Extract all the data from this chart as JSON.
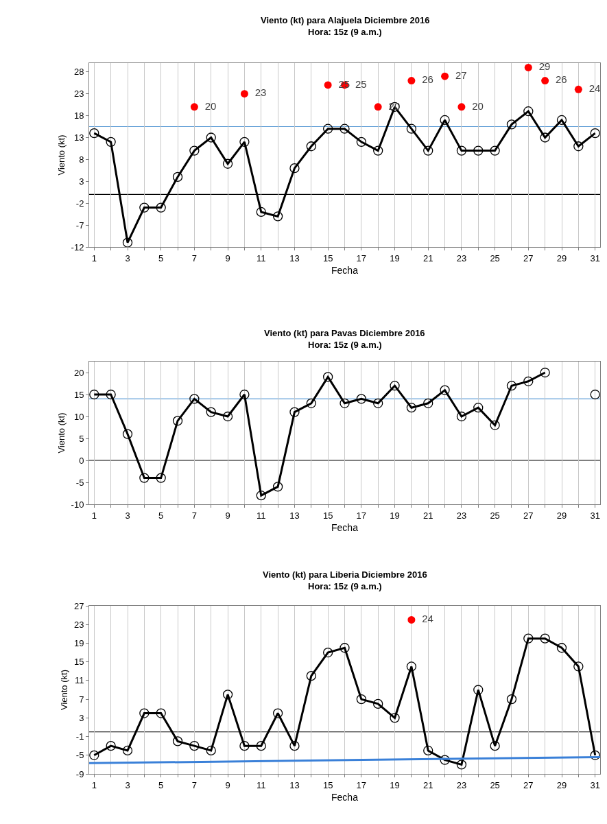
{
  "chart_data": [
    {
      "type": "line",
      "title": "Viento (kt) para Alajuela Diciembre 2016",
      "subtitle": "Hora: 15z (9 a.m.)",
      "xlabel": "Fecha",
      "ylabel": "Viento (kt)",
      "x": [
        1,
        2,
        3,
        4,
        5,
        6,
        7,
        8,
        9,
        10,
        11,
        12,
        13,
        14,
        15,
        16,
        17,
        18,
        19,
        20,
        21,
        22,
        23,
        24,
        25,
        26,
        27,
        28,
        29,
        30,
        31
      ],
      "series": [
        {
          "color": "#000000",
          "marker": "circle",
          "values": [
            14,
            12,
            -11,
            -3,
            -3,
            4,
            10,
            13,
            7,
            12,
            -4,
            -5,
            6,
            11,
            15,
            15,
            12,
            10,
            20,
            15,
            10,
            17,
            10,
            10,
            10,
            16,
            19,
            13,
            17,
            11,
            14
          ]
        },
        {
          "type": "scatter",
          "color": "#ff0000",
          "marker": "circle",
          "x": [
            7,
            10,
            15,
            16,
            18,
            20,
            22,
            23,
            27,
            28,
            30
          ],
          "values": [
            20,
            23,
            25,
            25,
            20,
            26,
            27,
            20,
            29,
            26,
            24
          ],
          "value_labels": [
            "20",
            "23",
            "25",
            "25",
            "20",
            "26",
            "27",
            "20",
            "29",
            "26",
            "24"
          ]
        }
      ],
      "xlim": [
        0.7,
        31.3
      ],
      "ylim": [
        -12,
        30
      ],
      "xticks": [
        1,
        {
          "value": 2,
          "label": null
        },
        3,
        {
          "value": 4,
          "label": null
        },
        5,
        {
          "value": 6,
          "label": null
        },
        7,
        {
          "value": 8,
          "label": null
        },
        9,
        {
          "value": 10,
          "label": null
        },
        11,
        {
          "value": 12,
          "label": null
        },
        13,
        {
          "value": 14,
          "label": null
        },
        15,
        {
          "value": 16,
          "label": null
        },
        17,
        {
          "value": 18,
          "label": null
        },
        19,
        {
          "value": 20,
          "label": null
        },
        21,
        {
          "value": 22,
          "label": null
        },
        23,
        {
          "value": 24,
          "label": null
        },
        25,
        {
          "value": 26,
          "label": null
        },
        27,
        {
          "value": 28,
          "label": null
        },
        29,
        {
          "value": 30,
          "label": null
        },
        31
      ],
      "yticks": [
        -12,
        -7,
        -2,
        3,
        8,
        13,
        18,
        23,
        28
      ],
      "ref_lines": [
        {
          "axis": "y",
          "value": 0,
          "color": "#000000"
        },
        {
          "axis": "y",
          "value": 15.5,
          "color": "#5b9bd5"
        }
      ],
      "grid": "x"
    },
    {
      "type": "line",
      "title": "Viento (kt) para Pavas Diciembre 2016",
      "subtitle": "Hora: 15z (9 a.m.)",
      "xlabel": "Fecha",
      "ylabel": "Viento (kt)",
      "x": [
        1,
        2,
        3,
        4,
        5,
        6,
        7,
        8,
        9,
        10,
        11,
        12,
        13,
        14,
        15,
        16,
        17,
        18,
        19,
        20,
        21,
        22,
        23,
        24,
        25,
        26,
        27,
        28,
        29,
        30,
        31
      ],
      "series": [
        {
          "color": "#000000",
          "marker": "circle",
          "values": [
            15,
            15,
            6,
            -4,
            -4,
            9,
            14,
            11,
            10,
            15,
            -8,
            -6,
            11,
            13,
            19,
            13,
            14,
            13,
            17,
            12,
            13,
            16,
            10,
            12,
            8,
            17,
            18,
            20,
            null,
            null,
            15
          ]
        }
      ],
      "xlim": [
        0.7,
        31.3
      ],
      "ylim": [
        -10,
        22.5
      ],
      "xticks": [
        1,
        {
          "value": 2,
          "label": null
        },
        3,
        {
          "value": 4,
          "label": null
        },
        5,
        {
          "value": 6,
          "label": null
        },
        7,
        {
          "value": 8,
          "label": null
        },
        9,
        {
          "value": 10,
          "label": null
        },
        11,
        {
          "value": 12,
          "label": null
        },
        13,
        {
          "value": 14,
          "label": null
        },
        15,
        {
          "value": 16,
          "label": null
        },
        17,
        {
          "value": 18,
          "label": null
        },
        19,
        {
          "value": 20,
          "label": null
        },
        21,
        {
          "value": 22,
          "label": null
        },
        23,
        {
          "value": 24,
          "label": null
        },
        25,
        {
          "value": 26,
          "label": null
        },
        27,
        {
          "value": 28,
          "label": null
        },
        29,
        {
          "value": 30,
          "label": null
        },
        31
      ],
      "yticks": [
        -10,
        -5,
        0,
        5,
        10,
        15,
        20
      ],
      "ref_lines": [
        {
          "axis": "y",
          "value": 0,
          "color": "#000000"
        },
        {
          "axis": "y",
          "value": 14,
          "color": "#5b9bd5"
        }
      ],
      "grid": "x"
    },
    {
      "type": "line",
      "title": "Viento (kt) para Liberia Diciembre 2016",
      "subtitle": "Hora: 15z (9 a.m.)",
      "xlabel": "Fecha",
      "ylabel": "Viento (kt)",
      "x": [
        1,
        2,
        3,
        4,
        5,
        6,
        7,
        8,
        9,
        10,
        11,
        12,
        13,
        14,
        15,
        16,
        17,
        18,
        19,
        20,
        21,
        22,
        23,
        24,
        25,
        26,
        27,
        28,
        29,
        30,
        31
      ],
      "series": [
        {
          "color": "#000000",
          "marker": "circle",
          "values": [
            -5,
            -3,
            -4,
            4,
            4,
            -2,
            -3,
            -4,
            8,
            -3,
            -3,
            4,
            -3,
            12,
            17,
            18,
            7,
            6,
            3,
            14,
            -4,
            -6,
            -7,
            9,
            -3,
            7,
            20,
            20,
            18,
            14,
            -5
          ]
        },
        {
          "type": "scatter",
          "color": "#ff0000",
          "marker": "circle",
          "x": [
            20
          ],
          "values": [
            24
          ],
          "value_labels": [
            "24"
          ]
        },
        {
          "type": "line",
          "color": "#3a80d8",
          "marker": "none",
          "x": [
            0.7,
            31.3
          ],
          "values": [
            -6.7,
            -5.4
          ]
        }
      ],
      "xlim": [
        0.7,
        31.3
      ],
      "ylim": [
        -9,
        27
      ],
      "xticks": [
        1,
        {
          "value": 2,
          "label": null
        },
        3,
        {
          "value": 4,
          "label": null
        },
        5,
        {
          "value": 6,
          "label": null
        },
        7,
        {
          "value": 8,
          "label": null
        },
        9,
        {
          "value": 10,
          "label": null
        },
        11,
        {
          "value": 12,
          "label": null
        },
        13,
        {
          "value": 14,
          "label": null
        },
        15,
        {
          "value": 16,
          "label": null
        },
        17,
        {
          "value": 18,
          "label": null
        },
        19,
        {
          "value": 20,
          "label": null
        },
        21,
        {
          "value": 22,
          "label": null
        },
        23,
        {
          "value": 24,
          "label": null
        },
        25,
        {
          "value": 26,
          "label": null
        },
        27,
        {
          "value": 28,
          "label": null
        },
        29,
        {
          "value": 30,
          "label": null
        },
        31
      ],
      "yticks": [
        -9,
        -5,
        -1,
        3,
        7,
        11,
        15,
        19,
        23,
        27
      ],
      "ref_lines": [
        {
          "axis": "y",
          "value": 0,
          "color": "#000000"
        }
      ],
      "grid": "x"
    }
  ]
}
